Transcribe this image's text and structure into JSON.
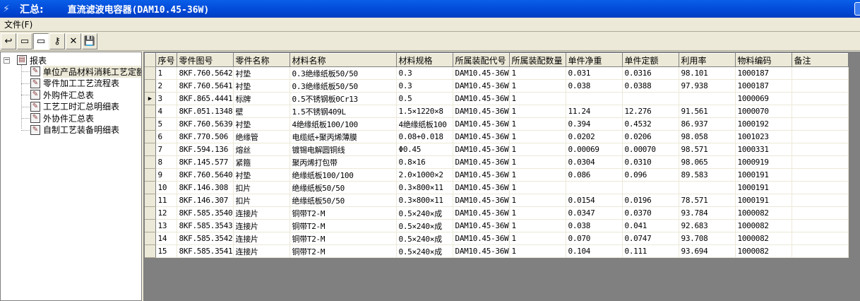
{
  "window": {
    "label": "汇总:",
    "title": "直流滤波电容器(DAM10.45-36W)",
    "app_icon": "feather-icon"
  },
  "menu": {
    "file": "文件(F)"
  },
  "toolbar": [
    {
      "icon": "back-arrow-icon",
      "glyph": "↩"
    },
    {
      "icon": "window-icon",
      "glyph": "▭"
    },
    {
      "icon": "window-active-icon",
      "glyph": "▭"
    },
    {
      "icon": "key-icon",
      "glyph": "⚷"
    },
    {
      "icon": "delete-x-icon",
      "glyph": "✕"
    },
    {
      "icon": "save-disk-icon",
      "glyph": "💾"
    }
  ],
  "tree": {
    "root": "报表",
    "items": [
      "单位产品材料消耗工艺定额",
      "零件加工工艺流程表",
      "外购件汇总表",
      "工艺工时汇总明细表",
      "外协件汇总表",
      "自制工艺装备明细表"
    ],
    "selected": 0
  },
  "grid": {
    "columns": [
      "序号",
      "零件图号",
      "零件名称",
      "材料名称",
      "材料规格",
      "所属装配代号",
      "所属装配数量",
      "单件净重",
      "单件定额",
      "利用率",
      "物料编码",
      "备注"
    ],
    "current_row": 2,
    "rows": [
      [
        "1",
        "8KF.760.5642",
        "衬垫",
        "0.3绝缘纸板50/50",
        "0.3",
        "DAM10.45-36W",
        "1",
        "0.031",
        "0.0316",
        "98.101",
        "1000187",
        ""
      ],
      [
        "2",
        "8KF.760.5641",
        "衬垫",
        "0.3绝缘纸板50/50",
        "0.3",
        "DAM10.45-36W",
        "1",
        "0.038",
        "0.0388",
        "97.938",
        "1000187",
        ""
      ],
      [
        "3",
        "8KF.865.4441",
        "标牌",
        "0.5不锈钢板0Cr13",
        "0.5",
        "DAM10.45-36W",
        "1",
        "",
        "",
        "",
        "1000069",
        ""
      ],
      [
        "4",
        "8KF.051.1348",
        "壁",
        "1.5不锈钢409L",
        "1.5×1220×8",
        "DAM10.45-36W",
        "1",
        "11.24",
        "12.276",
        "91.561",
        "1000070",
        ""
      ],
      [
        "5",
        "8KF.760.5639",
        "衬垫",
        "4绝缘纸板100/100",
        "4绝缘纸板100",
        "DAM10.45-36W",
        "1",
        "0.394",
        "0.4532",
        "86.937",
        "1000192",
        ""
      ],
      [
        "6",
        "8KF.770.506",
        "绝缘管",
        "电缆纸+聚丙烯薄膜",
        "0.08+0.018",
        "DAM10.45-36W",
        "1",
        "0.0202",
        "0.0206",
        "98.058",
        "1001023",
        ""
      ],
      [
        "7",
        "8KF.594.136",
        "熔丝",
        "镀锡电解圆铜线",
        "Φ0.45",
        "DAM10.45-36W",
        "1",
        "0.00069",
        "0.00070",
        "98.571",
        "1000331",
        ""
      ],
      [
        "8",
        "8KF.145.577",
        "紧箍",
        "聚丙烯打包带",
        "0.8×16",
        "DAM10.45-36W",
        "1",
        "0.0304",
        "0.0310",
        "98.065",
        "1000919",
        ""
      ],
      [
        "9",
        "8KF.760.5640",
        "衬垫",
        "绝缘纸板100/100",
        "2.0×1000×2",
        "DAM10.45-36W",
        "1",
        "0.086",
        "0.096",
        "89.583",
        "1000191",
        ""
      ],
      [
        "10",
        "8KF.146.308",
        "扣片",
        "绝缘纸板50/50",
        "0.3×800×11",
        "DAM10.45-36W",
        "1",
        "",
        "",
        "",
        "1000191",
        ""
      ],
      [
        "11",
        "8KF.146.307",
        "扣片",
        "绝缘纸板50/50",
        "0.3×800×11",
        "DAM10.45-36W",
        "1",
        "0.0154",
        "0.0196",
        "78.571",
        "1000191",
        ""
      ],
      [
        "12",
        "8KF.585.3540",
        "连接片",
        "铜带T2-M",
        "0.5×240×成",
        "DAM10.45-36W",
        "1",
        "0.0347",
        "0.0370",
        "93.784",
        "1000082",
        ""
      ],
      [
        "13",
        "8KF.585.3543",
        "连接片",
        "铜带T2-M",
        "0.5×240×成",
        "DAM10.45-36W",
        "1",
        "0.038",
        "0.041",
        "92.683",
        "1000082",
        ""
      ],
      [
        "14",
        "8KF.585.3542",
        "连接片",
        "铜带T2-M",
        "0.5×240×成",
        "DAM10.45-36W",
        "1",
        "0.070",
        "0.0747",
        "93.708",
        "1000082",
        ""
      ],
      [
        "15",
        "8KF.585.3541",
        "连接片",
        "铜带T2-M",
        "0.5×240×成",
        "DAM10.45-36W",
        "1",
        "0.104",
        "0.111",
        "93.694",
        "1000082",
        ""
      ]
    ]
  }
}
